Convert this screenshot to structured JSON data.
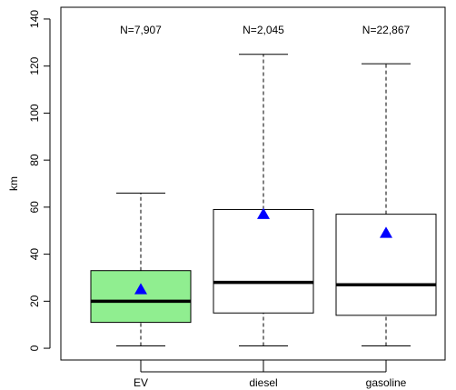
{
  "chart_data": {
    "type": "boxplot",
    "ylabel": "km",
    "ylim": [
      -5,
      145
    ],
    "y_ticks": [
      0,
      20,
      40,
      60,
      80,
      100,
      120,
      140
    ],
    "categories": [
      "EV",
      "diesel",
      "gasoline"
    ],
    "sample_sizes": [
      "N=7,907",
      "N=2,045",
      "N=22,867"
    ],
    "boxes": [
      {
        "category": "EV",
        "whisker_low": 1,
        "q1": 11,
        "median": 20,
        "q3": 33,
        "whisker_high": 66,
        "mean": 25,
        "fill": "#90ee90"
      },
      {
        "category": "diesel",
        "whisker_low": 1,
        "q1": 15,
        "median": 28,
        "q3": 59,
        "whisker_high": 125,
        "mean": 57,
        "fill": "#ffffff"
      },
      {
        "category": "gasoline",
        "whisker_low": 1,
        "q1": 14,
        "median": 27,
        "q3": 57,
        "whisker_high": 121,
        "mean": 49,
        "fill": "#ffffff"
      }
    ],
    "mean_marker": {
      "shape": "triangle",
      "color": "#0000ff"
    },
    "grid": false
  }
}
